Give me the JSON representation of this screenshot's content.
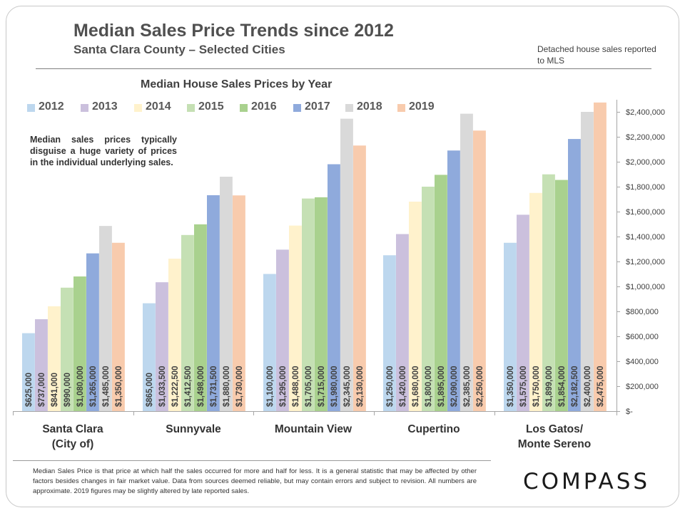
{
  "title": "Median Sales Price Trends since 2012",
  "subtitle": "Santa Clara County – Selected Cities",
  "note": "Detached house sales reported to MLS",
  "annotation": "Median sales prices typically disguise a huge variety of prices in the individual underlying sales.",
  "footnote": "Median Sales Price is that price at which half the sales occurred for more and half for less. It is a general statistic that may be affected by other factors besides changes in fair market value. Data from sources deemed reliable, but may contain errors and subject to revision.  All numbers are approximate. 2019 figures may be slightly altered by late reported sales.",
  "logo": "COMPASS",
  "chart_data": {
    "type": "bar",
    "title": "Median House Sales Prices by Year",
    "categories": [
      "Santa Clara\n(City of)",
      "Sunnyvale",
      "Mountain View",
      "Cupertino",
      "Los Gatos/\nMonte Sereno"
    ],
    "series": [
      {
        "name": "2012",
        "color": "#bdd7ee",
        "values": [
          625000,
          865000,
          1100000,
          1250000,
          1350000
        ],
        "labels": [
          "$625,000",
          "$865,000",
          "$1,100,000",
          "$1,250,000",
          "$1,350,000"
        ]
      },
      {
        "name": "2013",
        "color": "#cbc0dd",
        "values": [
          737000,
          1033500,
          1295000,
          1420000,
          1575000
        ],
        "labels": [
          "$737,000",
          "$1,033,500",
          "$1,295,000",
          "$1,420,000",
          "$1,575,000"
        ]
      },
      {
        "name": "2014",
        "color": "#fff2cc",
        "values": [
          841000,
          1222500,
          1488000,
          1680000,
          1750000
        ],
        "labels": [
          "$841,000",
          "$1,222,500",
          "$1,488,000",
          "$1,680,000",
          "$1,750,000"
        ]
      },
      {
        "name": "2015",
        "color": "#c5e0b4",
        "values": [
          990000,
          1412500,
          1705000,
          1800000,
          1899000
        ],
        "labels": [
          "$990,000",
          "$1,412,500",
          "$1,705,000",
          "$1,800,000",
          "$1,899,000"
        ]
      },
      {
        "name": "2016",
        "color": "#a9d18e",
        "values": [
          1080000,
          1498000,
          1715000,
          1895000,
          1854000
        ],
        "labels": [
          "$1,080,000",
          "$1,498,000",
          "$1,715,000",
          "$1,895,000",
          "$1,854,000"
        ]
      },
      {
        "name": "2017",
        "color": "#8faadc",
        "values": [
          1265000,
          1731500,
          1980000,
          2090000,
          2182500
        ],
        "labels": [
          "$1,265,000",
          "$1,731,500",
          "$1,980,000",
          "$2,090,000",
          "$2,182,500"
        ]
      },
      {
        "name": "2018",
        "color": "#d9d9d9",
        "values": [
          1485000,
          1880000,
          2345000,
          2385000,
          2400000
        ],
        "labels": [
          "$1,485,000",
          "$1,880,000",
          "$2,345,000",
          "$2,385,000",
          "$2,400,000"
        ]
      },
      {
        "name": "2019",
        "color": "#f8cbad",
        "values": [
          1350000,
          1730000,
          2130000,
          2250000,
          2475000
        ],
        "labels": [
          "$1,350,000",
          "$1,730,000",
          "$2,130,000",
          "$2,250,000",
          "$2,475,000"
        ]
      }
    ],
    "y_ticks": [
      0,
      200000,
      400000,
      600000,
      800000,
      1000000,
      1200000,
      1400000,
      1600000,
      1800000,
      2000000,
      2200000,
      2400000
    ],
    "y_tick_labels": [
      "$-",
      "$200,000",
      "$400,000",
      "$600,000",
      "$800,000",
      "$1,000,000",
      "$1,200,000",
      "$1,400,000",
      "$1,600,000",
      "$1,800,000",
      "$2,000,000",
      "$2,200,000",
      "$2,400,000"
    ],
    "ylim": [
      0,
      2500000
    ],
    "y_axis_side": "right",
    "grid": false,
    "legend": "top-left",
    "label_color": "#404040"
  }
}
